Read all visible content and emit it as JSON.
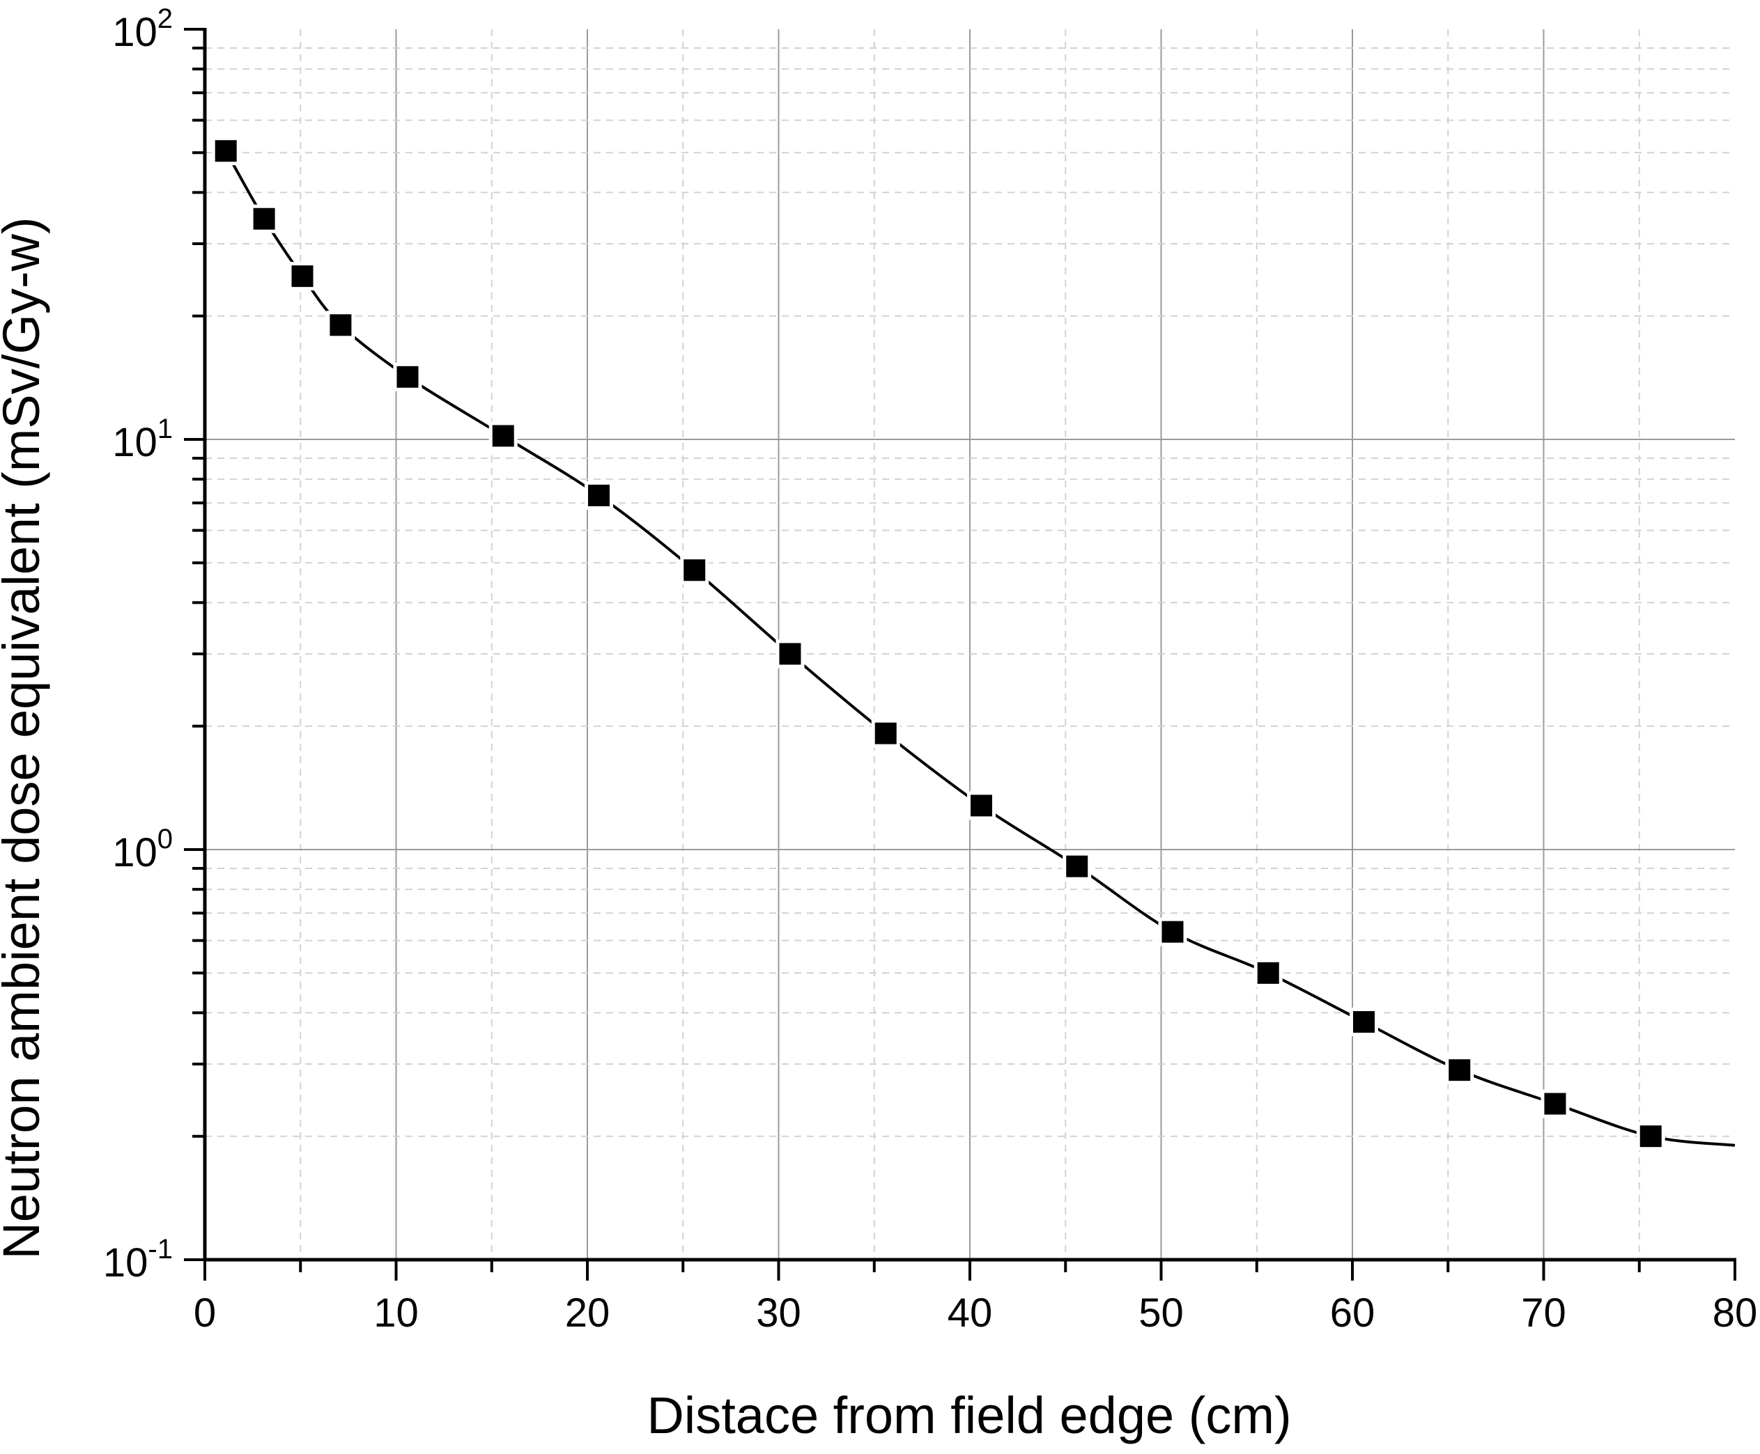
{
  "chart_data": {
    "type": "line",
    "xlabel": "Distace from field edge (cm)",
    "ylabel": "Neutron ambient dose equivalent (mSv/Gy-w)",
    "xlim": [
      0,
      80
    ],
    "ylim": [
      0.1,
      100
    ],
    "yscale": "log",
    "grid": true,
    "colors": {
      "line": "#000000",
      "marker": "#000000",
      "major_grid": "#9a9a9a",
      "minor_grid": "#d2d2d2"
    },
    "x_ticks": [
      "0",
      "10",
      "20",
      "30",
      "40",
      "50",
      "60",
      "70",
      "80"
    ],
    "y_ticks": [
      {
        "base": "10",
        "exp": "-1"
      },
      {
        "base": "10",
        "exp": "0"
      },
      {
        "base": "10",
        "exp": "1"
      },
      {
        "base": "10",
        "exp": "2"
      }
    ],
    "series": [
      {
        "marker": "square",
        "x": [
          1.1,
          3.1,
          5.1,
          7.1,
          10.6,
          15.6,
          20.6,
          25.6,
          30.6,
          35.6,
          40.6,
          45.6,
          50.6,
          55.6,
          60.6,
          65.6,
          70.6,
          75.6
        ],
        "y": [
          50.5,
          34.5,
          25,
          19,
          14.2,
          10.2,
          7.3,
          4.8,
          3.0,
          1.92,
          1.28,
          0.91,
          0.63,
          0.5,
          0.38,
          0.29,
          0.24,
          0.2
        ]
      }
    ],
    "curve": {
      "x": [
        1.1,
        3.1,
        5.1,
        7.1,
        10.6,
        15.6,
        20.6,
        25.6,
        30.6,
        35.6,
        40.6,
        45.6,
        50.6,
        55.6,
        60.6,
        65.6,
        70.6,
        75.6,
        80
      ],
      "y": [
        50.5,
        34.5,
        25,
        19,
        14.2,
        10.2,
        7.3,
        4.8,
        3.0,
        1.92,
        1.28,
        0.91,
        0.63,
        0.5,
        0.38,
        0.29,
        0.24,
        0.2,
        0.19
      ]
    }
  }
}
